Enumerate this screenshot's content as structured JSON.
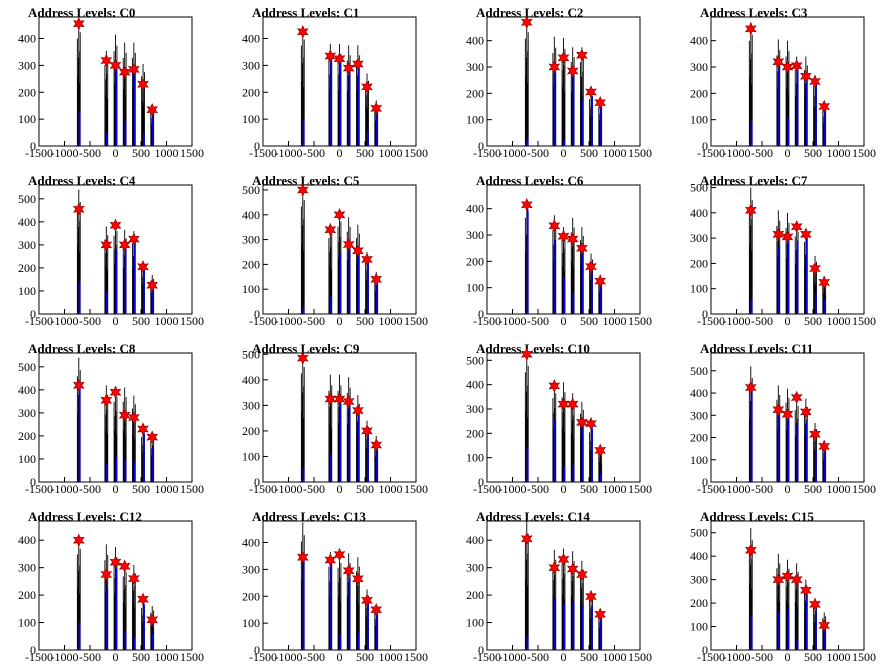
{
  "chart_data": [
    {
      "type": "bar",
      "title": "Address Levels: C0",
      "xlim": [
        -1500,
        1500
      ],
      "ylim": [
        0,
        480
      ],
      "yticks": [
        100,
        200,
        300,
        400
      ],
      "xticks": [
        -1500,
        -1000,
        -500,
        0,
        500,
        1000,
        1500
      ],
      "tallest": [
        470,
        355,
        415,
        385,
        385,
        305,
        150
      ],
      "blue": [
        130,
        50,
        290,
        95,
        280,
        50,
        140
      ],
      "peaks": [
        {
          "x": -720,
          "y": 455
        },
        {
          "x": -180,
          "y": 318
        },
        {
          "x": 0,
          "y": 300
        },
        {
          "x": 180,
          "y": 275
        },
        {
          "x": 360,
          "y": 285
        },
        {
          "x": 540,
          "y": 230
        },
        {
          "x": 720,
          "y": 135
        }
      ]
    },
    {
      "type": "bar",
      "title": "Address Levels: C1",
      "xlim": [
        -1500,
        1500
      ],
      "ylim": [
        0,
        480
      ],
      "yticks": [
        100,
        200,
        300,
        400
      ],
      "xticks": [
        -1500,
        -1000,
        -500,
        0,
        500,
        1000,
        1500
      ],
      "tallest": [
        440,
        380,
        380,
        375,
        375,
        270,
        170
      ],
      "blue": [
        95,
        330,
        320,
        295,
        290,
        55,
        130
      ],
      "peaks": [
        {
          "x": -720,
          "y": 425
        },
        {
          "x": -180,
          "y": 335
        },
        {
          "x": 0,
          "y": 325
        },
        {
          "x": 180,
          "y": 290
        },
        {
          "x": 360,
          "y": 305
        },
        {
          "x": 540,
          "y": 220
        },
        {
          "x": 720,
          "y": 140
        }
      ]
    },
    {
      "type": "bar",
      "title": "Address Levels: C2",
      "xlim": [
        -1500,
        1500
      ],
      "ylim": [
        0,
        490
      ],
      "yticks": [
        100,
        200,
        300,
        400
      ],
      "xticks": [
        -1500,
        -1000,
        -500,
        0,
        500,
        1000,
        1500
      ],
      "tallest": [
        480,
        415,
        410,
        375,
        375,
        210,
        175
      ],
      "blue": [
        30,
        295,
        25,
        280,
        180,
        190,
        150
      ],
      "peaks": [
        {
          "x": -720,
          "y": 470
        },
        {
          "x": -180,
          "y": 300
        },
        {
          "x": 0,
          "y": 335
        },
        {
          "x": 180,
          "y": 285
        },
        {
          "x": 360,
          "y": 345
        },
        {
          "x": 540,
          "y": 205
        },
        {
          "x": 720,
          "y": 165
        }
      ]
    },
    {
      "type": "bar",
      "title": "Address Levels: C3",
      "xlim": [
        -1500,
        1500
      ],
      "ylim": [
        0,
        490
      ],
      "yticks": [
        100,
        200,
        300,
        400
      ],
      "xticks": [
        -1500,
        -1000,
        -500,
        0,
        500,
        1000,
        1500
      ],
      "tallest": [
        470,
        405,
        400,
        340,
        340,
        270,
        160
      ],
      "blue": [
        95,
        310,
        110,
        305,
        265,
        240,
        150
      ],
      "peaks": [
        {
          "x": -720,
          "y": 445
        },
        {
          "x": -180,
          "y": 320
        },
        {
          "x": 0,
          "y": 300
        },
        {
          "x": 180,
          "y": 305
        },
        {
          "x": 360,
          "y": 265
        },
        {
          "x": 540,
          "y": 245
        },
        {
          "x": 720,
          "y": 150
        }
      ]
    },
    {
      "type": "bar",
      "title": "Address Levels: C4",
      "xlim": [
        -1500,
        1500
      ],
      "ylim": [
        0,
        560
      ],
      "yticks": [
        100,
        200,
        300,
        400,
        500
      ],
      "xticks": [
        -1500,
        -1000,
        -500,
        0,
        500,
        1000,
        1500
      ],
      "tallest": [
        540,
        380,
        400,
        365,
        360,
        230,
        170
      ],
      "blue": [
        140,
        95,
        280,
        300,
        310,
        200,
        110
      ],
      "peaks": [
        {
          "x": -720,
          "y": 455
        },
        {
          "x": -180,
          "y": 300
        },
        {
          "x": 0,
          "y": 385
        },
        {
          "x": 180,
          "y": 300
        },
        {
          "x": 360,
          "y": 325
        },
        {
          "x": 540,
          "y": 205
        },
        {
          "x": 720,
          "y": 125
        }
      ]
    },
    {
      "type": "bar",
      "title": "Address Levels: C5",
      "xlim": [
        -1500,
        1500
      ],
      "ylim": [
        0,
        520
      ],
      "yticks": [
        100,
        200,
        300,
        400,
        500
      ],
      "xticks": [
        -1500,
        -1000,
        -500,
        0,
        500,
        1000,
        1500
      ],
      "tallest": [
        510,
        360,
        415,
        390,
        360,
        250,
        170
      ],
      "blue": [
        30,
        70,
        245,
        270,
        245,
        220,
        140
      ],
      "peaks": [
        {
          "x": -720,
          "y": 500
        },
        {
          "x": -180,
          "y": 340
        },
        {
          "x": 0,
          "y": 400
        },
        {
          "x": 180,
          "y": 280
        },
        {
          "x": 360,
          "y": 255
        },
        {
          "x": 540,
          "y": 220
        },
        {
          "x": 720,
          "y": 140
        }
      ]
    },
    {
      "type": "bar",
      "title": "Address Levels: C6",
      "xlim": [
        -1500,
        1500
      ],
      "ylim": [
        0,
        490
      ],
      "yticks": [
        100,
        200,
        300,
        400
      ],
      "xticks": [
        -1500,
        -1000,
        -500,
        0,
        500,
        1000,
        1500
      ],
      "tallest": [
        430,
        375,
        330,
        365,
        330,
        230,
        150
      ],
      "blue": [
        400,
        280,
        140,
        80,
        245,
        155,
        125
      ],
      "peaks": [
        {
          "x": -720,
          "y": 415
        },
        {
          "x": -180,
          "y": 335
        },
        {
          "x": 0,
          "y": 295
        },
        {
          "x": 180,
          "y": 285
        },
        {
          "x": 360,
          "y": 250
        },
        {
          "x": 540,
          "y": 180
        },
        {
          "x": 720,
          "y": 125
        }
      ]
    },
    {
      "type": "bar",
      "title": "Address Levels: C7",
      "xlim": [
        -1500,
        1500
      ],
      "ylim": [
        0,
        510
      ],
      "yticks": [
        100,
        200,
        300,
        400,
        500
      ],
      "xticks": [
        -1500,
        -1000,
        -500,
        0,
        500,
        1000,
        1500
      ],
      "tallest": [
        500,
        410,
        400,
        360,
        335,
        230,
        150
      ],
      "blue": [
        60,
        270,
        305,
        290,
        310,
        80,
        55
      ],
      "peaks": [
        {
          "x": -720,
          "y": 410
        },
        {
          "x": -180,
          "y": 315
        },
        {
          "x": 0,
          "y": 305
        },
        {
          "x": 180,
          "y": 345
        },
        {
          "x": 360,
          "y": 315
        },
        {
          "x": 540,
          "y": 180
        },
        {
          "x": 720,
          "y": 125
        }
      ]
    },
    {
      "type": "bar",
      "title": "Address Levels: C8",
      "xlim": [
        -1500,
        1500
      ],
      "ylim": [
        0,
        560
      ],
      "yticks": [
        100,
        200,
        300,
        400,
        500
      ],
      "xticks": [
        -1500,
        -1000,
        -500,
        0,
        500,
        1000,
        1500
      ],
      "tallest": [
        540,
        420,
        410,
        410,
        375,
        230,
        210
      ],
      "blue": [
        420,
        80,
        110,
        95,
        90,
        220,
        150
      ],
      "peaks": [
        {
          "x": -720,
          "y": 420
        },
        {
          "x": -180,
          "y": 355
        },
        {
          "x": 0,
          "y": 390
        },
        {
          "x": 180,
          "y": 290
        },
        {
          "x": 360,
          "y": 280
        },
        {
          "x": 540,
          "y": 230
        },
        {
          "x": 720,
          "y": 195
        }
      ]
    },
    {
      "type": "bar",
      "title": "Address Levels: C9",
      "xlim": [
        -1500,
        1500
      ],
      "ylim": [
        0,
        505
      ],
      "yticks": [
        100,
        200,
        300,
        400,
        500
      ],
      "xticks": [
        -1500,
        -1000,
        -500,
        0,
        500,
        1000,
        1500
      ],
      "tallest": [
        500,
        420,
        420,
        410,
        340,
        240,
        180
      ],
      "blue": [
        55,
        110,
        310,
        310,
        270,
        180,
        140
      ],
      "peaks": [
        {
          "x": -720,
          "y": 485
        },
        {
          "x": -180,
          "y": 325
        },
        {
          "x": 0,
          "y": 325
        },
        {
          "x": 180,
          "y": 315
        },
        {
          "x": 360,
          "y": 280
        },
        {
          "x": 540,
          "y": 200
        },
        {
          "x": 720,
          "y": 145
        }
      ]
    },
    {
      "type": "bar",
      "title": "Address Levels: C10",
      "xlim": [
        -1500,
        1500
      ],
      "ylim": [
        0,
        530
      ],
      "yticks": [
        100,
        200,
        300,
        400,
        500
      ],
      "xticks": [
        -1500,
        -1000,
        -500,
        0,
        500,
        1000,
        1500
      ],
      "tallest": [
        530,
        405,
        410,
        365,
        330,
        240,
        150
      ],
      "blue": [
        145,
        255,
        65,
        70,
        255,
        230,
        35
      ],
      "peaks": [
        {
          "x": -720,
          "y": 525
        },
        {
          "x": -180,
          "y": 395
        },
        {
          "x": 0,
          "y": 320
        },
        {
          "x": 180,
          "y": 320
        },
        {
          "x": 360,
          "y": 245
        },
        {
          "x": 540,
          "y": 240
        },
        {
          "x": 720,
          "y": 130
        }
      ]
    },
    {
      "type": "bar",
      "title": "Address Levels: C11",
      "xlim": [
        -1500,
        1500
      ],
      "ylim": [
        0,
        580
      ],
      "yticks": [
        100,
        200,
        300,
        400,
        500
      ],
      "xticks": [
        -1500,
        -1000,
        -500,
        0,
        500,
        1000,
        1500
      ],
      "tallest": [
        520,
        435,
        420,
        380,
        375,
        265,
        185
      ],
      "blue": [
        420,
        320,
        310,
        260,
        275,
        140,
        150
      ],
      "peaks": [
        {
          "x": -720,
          "y": 425
        },
        {
          "x": -180,
          "y": 325
        },
        {
          "x": 0,
          "y": 305
        },
        {
          "x": 180,
          "y": 380
        },
        {
          "x": 360,
          "y": 315
        },
        {
          "x": 540,
          "y": 215
        },
        {
          "x": 720,
          "y": 160
        }
      ]
    },
    {
      "type": "bar",
      "title": "Address Levels: C12",
      "xlim": [
        -1500,
        1500
      ],
      "ylim": [
        0,
        470
      ],
      "yticks": [
        100,
        200,
        300,
        400
      ],
      "xticks": [
        -1500,
        -1000,
        -500,
        0,
        500,
        1000,
        1500
      ],
      "tallest": [
        410,
        385,
        375,
        315,
        310,
        180,
        160
      ],
      "blue": [
        100,
        230,
        300,
        70,
        45,
        170,
        60
      ],
      "peaks": [
        {
          "x": -720,
          "y": 400
        },
        {
          "x": -180,
          "y": 275
        },
        {
          "x": 0,
          "y": 320
        },
        {
          "x": 180,
          "y": 305
        },
        {
          "x": 360,
          "y": 260
        },
        {
          "x": 540,
          "y": 185
        },
        {
          "x": 720,
          "y": 110
        }
      ]
    },
    {
      "type": "bar",
      "title": "Address Levels: C13",
      "xlim": [
        -1500,
        1500
      ],
      "ylim": [
        0,
        480
      ],
      "yticks": [
        100,
        200,
        300,
        400
      ],
      "xticks": [
        -1500,
        -1000,
        -500,
        0,
        500,
        1000,
        1500
      ],
      "tallest": [
        475,
        365,
        360,
        360,
        345,
        225,
        165
      ],
      "blue": [
        340,
        330,
        60,
        270,
        65,
        180,
        150
      ],
      "peaks": [
        {
          "x": -720,
          "y": 345
        },
        {
          "x": -180,
          "y": 335
        },
        {
          "x": 0,
          "y": 355
        },
        {
          "x": 180,
          "y": 295
        },
        {
          "x": 360,
          "y": 265
        },
        {
          "x": 540,
          "y": 185
        },
        {
          "x": 720,
          "y": 150
        }
      ]
    },
    {
      "type": "bar",
      "title": "Address Levels: C14",
      "xlim": [
        -1500,
        1500
      ],
      "ylim": [
        0,
        470
      ],
      "yticks": [
        100,
        200,
        300,
        400
      ],
      "xticks": [
        -1500,
        -1000,
        -500,
        0,
        500,
        1000,
        1500
      ],
      "tallest": [
        470,
        365,
        370,
        360,
        325,
        215,
        145
      ],
      "blue": [
        50,
        190,
        170,
        175,
        160,
        160,
        115
      ],
      "peaks": [
        {
          "x": -720,
          "y": 405
        },
        {
          "x": -180,
          "y": 300
        },
        {
          "x": 0,
          "y": 330
        },
        {
          "x": 180,
          "y": 295
        },
        {
          "x": 360,
          "y": 275
        },
        {
          "x": 540,
          "y": 195
        },
        {
          "x": 720,
          "y": 130
        }
      ]
    },
    {
      "type": "bar",
      "title": "Address Levels: C15",
      "xlim": [
        -1500,
        1500
      ],
      "ylim": [
        0,
        550
      ],
      "yticks": [
        100,
        200,
        300,
        400,
        500
      ],
      "xticks": [
        -1500,
        -1000,
        -500,
        0,
        500,
        1000,
        1500
      ],
      "tallest": [
        520,
        410,
        385,
        370,
        300,
        215,
        160
      ],
      "blue": [
        145,
        165,
        175,
        45,
        240,
        170,
        110
      ],
      "peaks": [
        {
          "x": -720,
          "y": 425
        },
        {
          "x": -180,
          "y": 300
        },
        {
          "x": 0,
          "y": 315
        },
        {
          "x": 180,
          "y": 300
        },
        {
          "x": 360,
          "y": 255
        },
        {
          "x": 540,
          "y": 195
        },
        {
          "x": 720,
          "y": 105
        }
      ]
    }
  ],
  "colors": {
    "spike": "#000000",
    "blue": "#0000ee",
    "marker": "#ff0000",
    "axis": "#000000"
  }
}
